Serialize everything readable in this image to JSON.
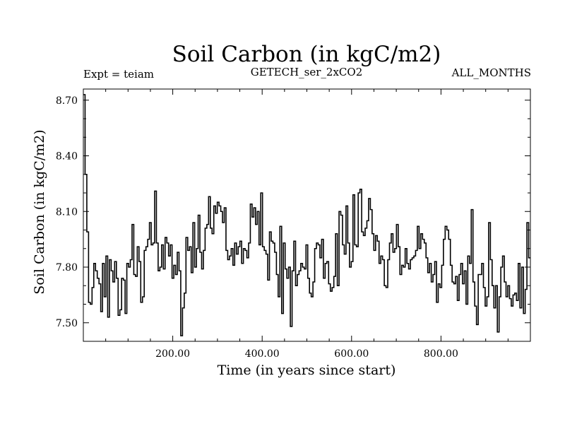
{
  "chart_data": {
    "type": "line",
    "step": true,
    "title": "Soil Carbon (in kgC/m2)",
    "subtitle_left": "Expt = teiam",
    "subtitle_center": "GETECH_ser_2xCO2",
    "subtitle_right": "ALL_MONTHS",
    "xlabel": "Time (in years since start)",
    "ylabel": "Soil Carbon (in kgC/m2)",
    "xlim": [
      0,
      1000
    ],
    "ylim": [
      7.4,
      8.76
    ],
    "xticks": [
      200,
      400,
      600,
      800
    ],
    "xtick_labels": [
      "200.00",
      "400.00",
      "600.00",
      "800.00"
    ],
    "yticks": [
      7.5,
      7.8,
      8.1,
      8.4,
      8.7
    ],
    "ytick_labels": [
      "7.50",
      "7.80",
      "8.10",
      "8.40",
      "8.70"
    ],
    "series": [
      {
        "name": "Soil Carbon",
        "values": [
          8.73,
          8.3,
          7.99,
          7.61,
          7.6,
          7.69,
          7.82,
          7.78,
          7.74,
          7.71,
          7.56,
          7.82,
          7.64,
          7.86,
          7.53,
          7.84,
          7.78,
          7.72,
          7.83,
          7.74,
          7.54,
          7.57,
          7.74,
          7.73,
          7.55,
          7.82,
          7.8,
          7.84,
          8.03,
          7.76,
          7.75,
          7.91,
          7.83,
          7.61,
          7.64,
          7.89,
          7.91,
          7.95,
          8.04,
          7.92,
          7.93,
          8.21,
          7.93,
          7.78,
          7.8,
          7.92,
          7.79,
          7.96,
          7.93,
          7.86,
          7.92,
          7.74,
          7.81,
          7.76,
          7.88,
          7.78,
          7.43,
          7.58,
          7.66,
          7.96,
          7.89,
          7.91,
          7.77,
          8.04,
          7.8,
          7.9,
          8.08,
          7.88,
          7.79,
          7.89,
          8.01,
          8.03,
          8.18,
          8.01,
          7.98,
          8.13,
          8.09,
          8.15,
          8.13,
          8.1,
          8.04,
          8.12,
          7.89,
          7.84,
          7.86,
          7.9,
          7.81,
          7.93,
          7.87,
          7.91,
          7.94,
          7.82,
          7.9,
          7.89,
          7.85,
          7.93,
          8.14,
          8.07,
          8.12,
          8.03,
          8.1,
          7.92,
          8.2,
          7.91,
          7.89,
          7.87,
          7.73,
          7.99,
          7.94,
          7.93,
          7.88,
          7.76,
          7.64,
          8.02,
          7.55,
          7.93,
          7.79,
          7.74,
          7.8,
          7.48,
          7.78,
          7.94,
          7.7,
          7.76,
          7.78,
          7.82,
          7.8,
          7.79,
          7.92,
          7.74,
          7.66,
          7.64,
          7.72,
          7.9,
          7.93,
          7.92,
          7.85,
          7.95,
          7.74,
          7.82,
          7.83,
          7.71,
          7.67,
          7.69,
          7.75,
          7.98,
          7.7,
          8.1,
          8.08,
          7.92,
          7.87,
          8.13,
          7.93,
          7.8,
          7.83,
          8.19,
          7.92,
          7.91,
          8.2,
          8.22,
          7.99,
          7.97,
          8.01,
          8.05,
          8.17,
          8.11,
          7.98,
          7.89,
          7.97,
          7.94,
          7.82,
          7.86,
          7.84,
          7.7,
          7.69,
          7.84,
          7.93,
          7.98,
          7.88,
          7.9,
          8.03,
          7.91,
          7.76,
          7.81,
          7.8,
          7.9,
          7.82,
          7.79,
          7.84,
          7.85,
          7.86,
          7.89,
          8.02,
          7.9,
          7.98,
          7.95,
          7.93,
          7.85,
          7.77,
          7.82,
          7.72,
          7.76,
          7.83,
          7.61,
          7.71,
          7.69,
          7.81,
          7.95,
          8.02,
          8.0,
          7.95,
          7.81,
          7.72,
          7.71,
          7.75,
          7.62,
          7.76,
          7.82,
          7.71,
          7.78,
          7.6,
          7.86,
          7.82,
          8.11,
          7.72,
          7.59,
          7.49,
          7.76,
          7.76,
          7.82,
          7.69,
          7.59,
          7.64,
          8.04,
          7.84,
          7.7,
          7.58,
          7.7,
          7.45,
          7.64,
          7.8,
          7.86,
          7.72,
          7.64,
          7.7,
          7.63,
          7.59,
          7.65,
          7.66,
          7.62,
          7.82,
          7.58,
          7.8,
          7.55,
          7.68,
          8.04,
          7.85
        ]
      }
    ]
  }
}
